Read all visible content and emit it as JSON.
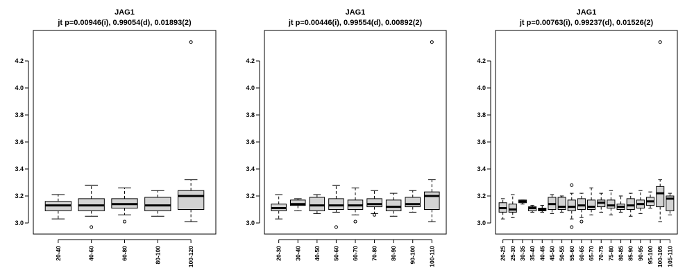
{
  "chart_data": [
    {
      "type": "boxplot",
      "title": "JAG1",
      "subtitle": "jt p=0.00946(i), 0.99054(d), 0.01893(2)",
      "xlabel": "",
      "ylabel": "",
      "ylim": [
        2.92,
        4.42
      ],
      "yticks": [
        "3.0",
        "3.2",
        "3.4",
        "3.6",
        "3.8",
        "4.0",
        "4.2"
      ],
      "grid": false,
      "categories": [
        "20-40",
        "40-60",
        "60-80",
        "80-100",
        "100-120"
      ],
      "boxes": [
        {
          "whisker_low": 3.03,
          "q1": 3.09,
          "median": 3.13,
          "q3": 3.16,
          "whisker_high": 3.21,
          "outliers": []
        },
        {
          "whisker_low": 3.05,
          "q1": 3.09,
          "median": 3.13,
          "q3": 3.18,
          "whisker_high": 3.28,
          "outliers": [
            2.97
          ]
        },
        {
          "whisker_low": 3.06,
          "q1": 3.11,
          "median": 3.14,
          "q3": 3.18,
          "whisker_high": 3.26,
          "outliers": [
            3.01
          ]
        },
        {
          "whisker_low": 3.05,
          "q1": 3.09,
          "median": 3.13,
          "q3": 3.19,
          "whisker_high": 3.24,
          "outliers": []
        },
        {
          "whisker_low": 3.01,
          "q1": 3.1,
          "median": 3.2,
          "q3": 3.24,
          "whisker_high": 3.32,
          "outliers": [
            4.34
          ]
        }
      ]
    },
    {
      "type": "boxplot",
      "title": "JAG1",
      "subtitle": "jt p=0.00446(i), 0.99554(d), 0.00892(2)",
      "xlabel": "",
      "ylabel": "",
      "ylim": [
        2.92,
        4.42
      ],
      "yticks": [
        "3.0",
        "3.2",
        "3.4",
        "3.6",
        "3.8",
        "4.0",
        "4.2"
      ],
      "grid": false,
      "categories": [
        "20-30",
        "30-40",
        "40-50",
        "50-60",
        "60-70",
        "70-80",
        "80-90",
        "90-100",
        "100-110"
      ],
      "boxes": [
        {
          "whisker_low": 3.03,
          "q1": 3.09,
          "median": 3.11,
          "q3": 3.14,
          "whisker_high": 3.21,
          "outliers": []
        },
        {
          "whisker_low": 3.09,
          "q1": 3.13,
          "median": 3.14,
          "q3": 3.17,
          "whisker_high": 3.18,
          "outliers": []
        },
        {
          "whisker_low": 3.07,
          "q1": 3.09,
          "median": 3.13,
          "q3": 3.19,
          "whisker_high": 3.21,
          "outliers": []
        },
        {
          "whisker_low": 3.08,
          "q1": 3.1,
          "median": 3.13,
          "q3": 3.18,
          "whisker_high": 3.28,
          "outliers": [
            2.97
          ]
        },
        {
          "whisker_low": 3.06,
          "q1": 3.1,
          "median": 3.13,
          "q3": 3.17,
          "whisker_high": 3.26,
          "outliers": [
            3.01
          ]
        },
        {
          "whisker_low": 3.07,
          "q1": 3.12,
          "median": 3.14,
          "q3": 3.18,
          "whisker_high": 3.24,
          "outliers": [
            3.06
          ]
        },
        {
          "whisker_low": 3.05,
          "q1": 3.09,
          "median": 3.12,
          "q3": 3.17,
          "whisker_high": 3.22,
          "outliers": []
        },
        {
          "whisker_low": 3.08,
          "q1": 3.12,
          "median": 3.14,
          "q3": 3.19,
          "whisker_high": 3.24,
          "outliers": []
        },
        {
          "whisker_low": 3.01,
          "q1": 3.1,
          "median": 3.2,
          "q3": 3.23,
          "whisker_high": 3.32,
          "outliers": [
            4.34
          ]
        }
      ]
    },
    {
      "type": "boxplot",
      "title": "JAG1",
      "subtitle": "jt p=0.00763(i), 0.99237(d), 0.01526(2)",
      "xlabel": "",
      "ylabel": "",
      "ylim": [
        2.92,
        4.42
      ],
      "yticks": [
        "3.0",
        "3.2",
        "3.4",
        "3.6",
        "3.8",
        "4.0",
        "4.2"
      ],
      "grid": false,
      "categories": [
        "20-25",
        "25-30",
        "30-35",
        "35-40",
        "40-45",
        "45-50",
        "50-55",
        "55-60",
        "60-65",
        "65-70",
        "70-75",
        "75-80",
        "80-85",
        "85-90",
        "90-95",
        "95-100",
        "100-105",
        "105-110"
      ],
      "boxes": [
        {
          "whisker_low": 3.03,
          "q1": 3.08,
          "median": 3.11,
          "q3": 3.15,
          "whisker_high": 3.18,
          "outliers": []
        },
        {
          "whisker_low": 3.04,
          "q1": 3.08,
          "median": 3.1,
          "q3": 3.14,
          "whisker_high": 3.21,
          "outliers": []
        },
        {
          "whisker_low": 3.14,
          "q1": 3.15,
          "median": 3.16,
          "q3": 3.17,
          "whisker_high": 3.17,
          "outliers": []
        },
        {
          "whisker_low": 3.08,
          "q1": 3.09,
          "median": 3.11,
          "q3": 3.12,
          "whisker_high": 3.13,
          "outliers": []
        },
        {
          "whisker_low": 3.08,
          "q1": 3.09,
          "median": 3.1,
          "q3": 3.11,
          "whisker_high": 3.13,
          "outliers": []
        },
        {
          "whisker_low": 3.07,
          "q1": 3.1,
          "median": 3.14,
          "q3": 3.19,
          "whisker_high": 3.21,
          "outliers": []
        },
        {
          "whisker_low": 3.08,
          "q1": 3.1,
          "median": 3.12,
          "q3": 3.19,
          "whisker_high": 3.2,
          "outliers": []
        },
        {
          "whisker_low": 3.03,
          "q1": 3.09,
          "median": 3.12,
          "q3": 3.17,
          "whisker_high": 3.22,
          "outliers": [
            3.28,
            2.97
          ]
        },
        {
          "whisker_low": 3.04,
          "q1": 3.1,
          "median": 3.13,
          "q3": 3.18,
          "whisker_high": 3.22,
          "outliers": [
            3.01
          ]
        },
        {
          "whisker_low": 3.06,
          "q1": 3.1,
          "median": 3.12,
          "q3": 3.17,
          "whisker_high": 3.26,
          "outliers": []
        },
        {
          "whisker_low": 3.08,
          "q1": 3.12,
          "median": 3.15,
          "q3": 3.17,
          "whisker_high": 3.22,
          "outliers": []
        },
        {
          "whisker_low": 3.06,
          "q1": 3.11,
          "median": 3.13,
          "q3": 3.17,
          "whisker_high": 3.24,
          "outliers": []
        },
        {
          "whisker_low": 3.08,
          "q1": 3.1,
          "median": 3.12,
          "q3": 3.14,
          "whisker_high": 3.2,
          "outliers": []
        },
        {
          "whisker_low": 3.05,
          "q1": 3.1,
          "median": 3.13,
          "q3": 3.18,
          "whisker_high": 3.22,
          "outliers": []
        },
        {
          "whisker_low": 3.07,
          "q1": 3.11,
          "median": 3.14,
          "q3": 3.17,
          "whisker_high": 3.24,
          "outliers": []
        },
        {
          "whisker_low": 3.11,
          "q1": 3.13,
          "median": 3.16,
          "q3": 3.19,
          "whisker_high": 3.23,
          "outliers": []
        },
        {
          "whisker_low": 3.01,
          "q1": 3.12,
          "median": 3.22,
          "q3": 3.27,
          "whisker_high": 3.32,
          "outliers": [
            4.34
          ]
        },
        {
          "whisker_low": 3.06,
          "q1": 3.09,
          "median": 3.18,
          "q3": 3.2,
          "whisker_high": 3.22,
          "outliers": []
        }
      ]
    }
  ]
}
